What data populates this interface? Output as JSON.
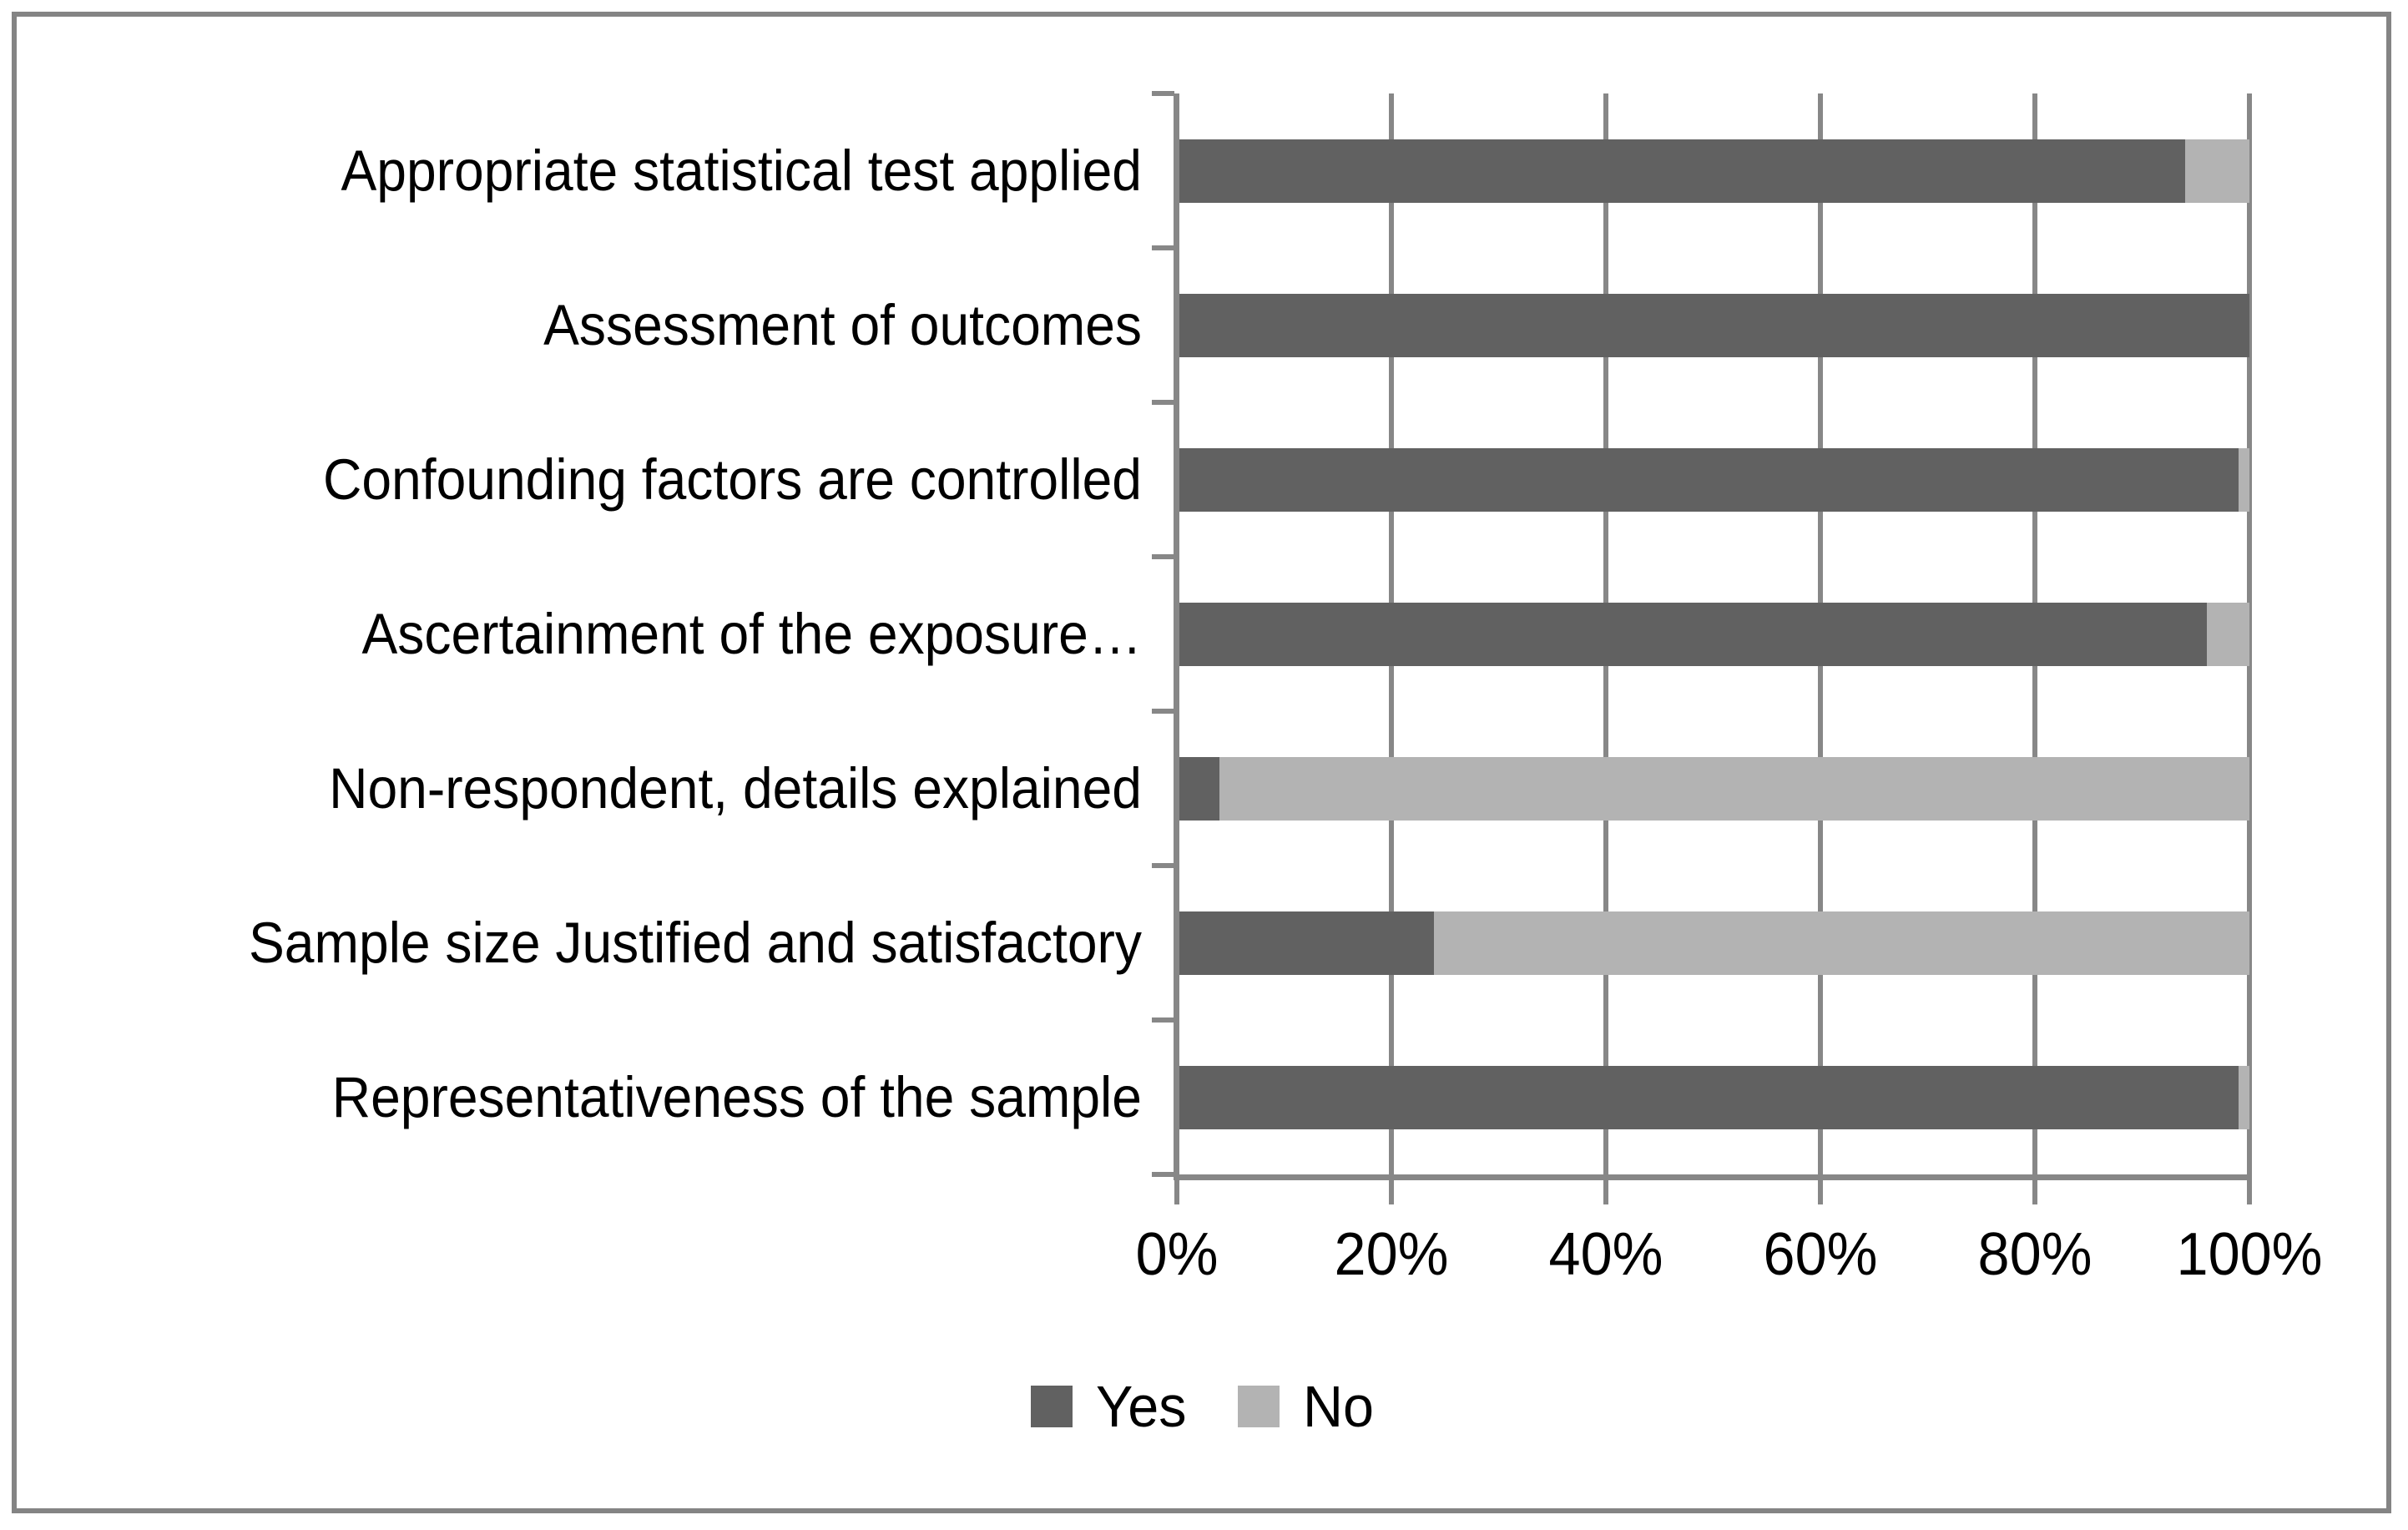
{
  "chart_data": {
    "type": "bar",
    "orientation": "horizontal",
    "stacked_100_percent": true,
    "title": "",
    "xlabel": "",
    "ylabel": "",
    "categories": [
      "Appropriate statistical test applied",
      "Assessment of outcomes",
      "Confounding factors are controlled",
      "Ascertainment of the exposure…",
      "Non-respondent, details explained",
      "Sample size Justified and satisfactory",
      "Representativeness of the sample"
    ],
    "categories_order": "top-to-bottom",
    "series": [
      {
        "name": "Yes",
        "color": "#616161",
        "values": [
          94,
          100,
          99,
          96,
          4,
          24,
          99
        ]
      },
      {
        "name": "No",
        "color": "#b3b3b3",
        "values": [
          6,
          0,
          1,
          4,
          96,
          76,
          1
        ]
      }
    ],
    "unit": "%",
    "xlim": [
      0,
      100
    ],
    "x_tick_labels": [
      "0%",
      "20%",
      "40%",
      "60%",
      "80%",
      "100%"
    ],
    "grid": "vertical-gridlines-on",
    "legend_position": "bottom-center"
  },
  "colors": {
    "bar_yes": "#616161",
    "bar_no": "#b3b3b3",
    "gridline": "#878787",
    "axis": "#878787",
    "frame_border": "#848484",
    "background": "#ffffff",
    "text": "#000000"
  }
}
